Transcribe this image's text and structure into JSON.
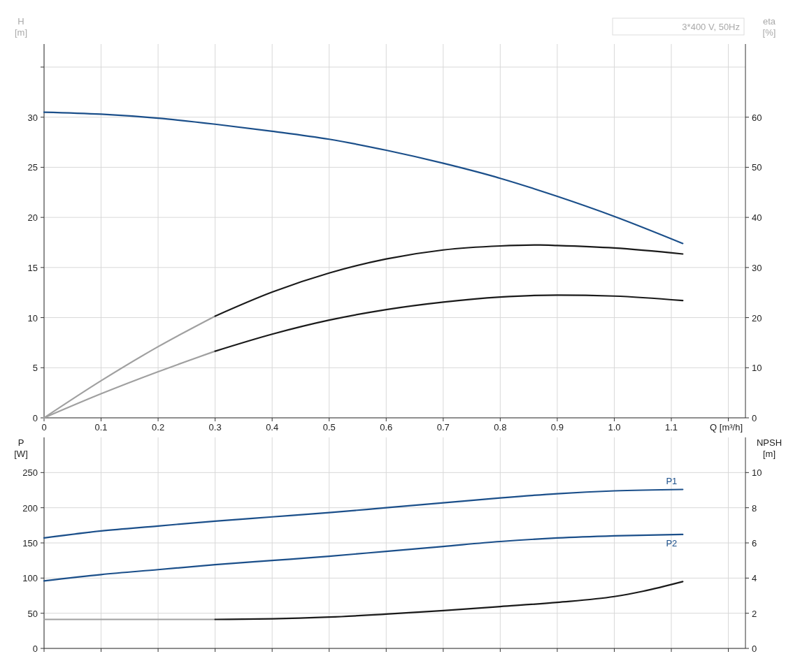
{
  "chart_data": [
    {
      "type": "line",
      "xlabel": "Q [m³/h]",
      "ylabel": "H [m]",
      "y2label": "eta [%]",
      "annotations": [
        "3*400 V, 50Hz"
      ],
      "xlim": [
        0,
        1.23
      ],
      "xticks": [
        0,
        0.1,
        0.2,
        0.3,
        0.4,
        0.5,
        0.6,
        0.7,
        0.8,
        0.9,
        {
          "value": 1,
          "label": "1.0"
        },
        1.1,
        {
          "value": 1.2,
          "label": null
        }
      ],
      "ylim": [
        0,
        37.3
      ],
      "yticks": [
        0,
        5,
        10,
        15,
        20,
        25,
        30,
        {
          "value": 35,
          "label": null
        }
      ],
      "y2lim": [
        0,
        74.6
      ],
      "y2ticks": [
        0,
        10,
        20,
        30,
        40,
        50,
        60
      ],
      "grid": true,
      "series": [
        {
          "color": "#1b4f8a",
          "x": [
            0,
            0.1,
            0.2,
            0.3,
            0.4,
            0.5,
            0.6,
            0.7,
            0.8,
            0.9,
            1.0,
            1.12
          ],
          "values": [
            30.5,
            30.3,
            29.9,
            29.3,
            28.6,
            27.8,
            26.7,
            25.4,
            23.9,
            22.1,
            20.1,
            17.4
          ]
        },
        {
          "color": "#a0a0a0",
          "axis": "y2",
          "x": [
            0,
            0.1,
            0.2,
            0.3
          ],
          "values": [
            0,
            7.4,
            14.2,
            20.3
          ]
        },
        {
          "color": "#1a1a1a",
          "axis": "y2",
          "x": [
            0.3,
            0.4,
            0.5,
            0.6,
            0.7,
            0.8,
            0.87,
            0.9,
            1.0,
            1.12
          ],
          "values": [
            20.3,
            25.1,
            28.9,
            31.7,
            33.5,
            34.3,
            34.5,
            34.4,
            33.9,
            32.7
          ]
        },
        {
          "color": "#a0a0a0",
          "axis": "y2",
          "x": [
            0,
            0.1,
            0.2,
            0.3
          ],
          "values": [
            0,
            4.8,
            9.2,
            13.3
          ]
        },
        {
          "color": "#1a1a1a",
          "axis": "y2",
          "x": [
            0.3,
            0.4,
            0.5,
            0.6,
            0.7,
            0.8,
            0.9,
            1.0,
            1.12
          ],
          "values": [
            13.3,
            16.7,
            19.5,
            21.6,
            23.1,
            24.1,
            24.5,
            24.3,
            23.4
          ]
        }
      ]
    },
    {
      "type": "line",
      "ylabel": "P [W]",
      "y2label": "NPSH [m]",
      "tick_labels": "y",
      "xlim": [
        0,
        1.23
      ],
      "xticks": [
        0,
        0.1,
        0.2,
        0.3,
        0.4,
        0.5,
        0.6,
        0.7,
        0.8,
        0.9,
        1,
        1.1,
        1.2
      ],
      "ylim": [
        0,
        300
      ],
      "yticks": [
        0,
        50,
        100,
        150,
        200,
        250
      ],
      "y2lim": [
        0,
        12
      ],
      "y2ticks": [
        0,
        2,
        4,
        6,
        8,
        10
      ],
      "grid": true,
      "series": [
        {
          "name": "P1",
          "color": "#1b4f8a",
          "x": [
            0,
            0.1,
            0.2,
            0.3,
            0.4,
            0.5,
            0.6,
            0.7,
            0.8,
            0.9,
            1.0,
            1.12
          ],
          "values": [
            157,
            167,
            174,
            181,
            187,
            193,
            200,
            207,
            214,
            220,
            224,
            226
          ]
        },
        {
          "name": "P2",
          "color": "#1b4f8a",
          "x": [
            0,
            0.1,
            0.2,
            0.3,
            0.4,
            0.5,
            0.6,
            0.7,
            0.8,
            0.9,
            1.0,
            1.12
          ],
          "values": [
            96,
            105,
            112,
            119,
            125,
            131,
            138,
            145,
            152,
            157,
            160,
            162
          ]
        },
        {
          "color": "#a0a0a0",
          "axis": "y2",
          "x": [
            0,
            0.3
          ],
          "values": [
            1.65,
            1.65
          ]
        },
        {
          "color": "#1a1a1a",
          "axis": "y2",
          "x": [
            0.3,
            0.4,
            0.5,
            0.6,
            0.7,
            0.8,
            0.9,
            1.0,
            1.05,
            1.12
          ],
          "values": [
            1.65,
            1.68,
            1.78,
            1.95,
            2.15,
            2.38,
            2.62,
            2.95,
            3.25,
            3.8
          ]
        }
      ]
    }
  ]
}
